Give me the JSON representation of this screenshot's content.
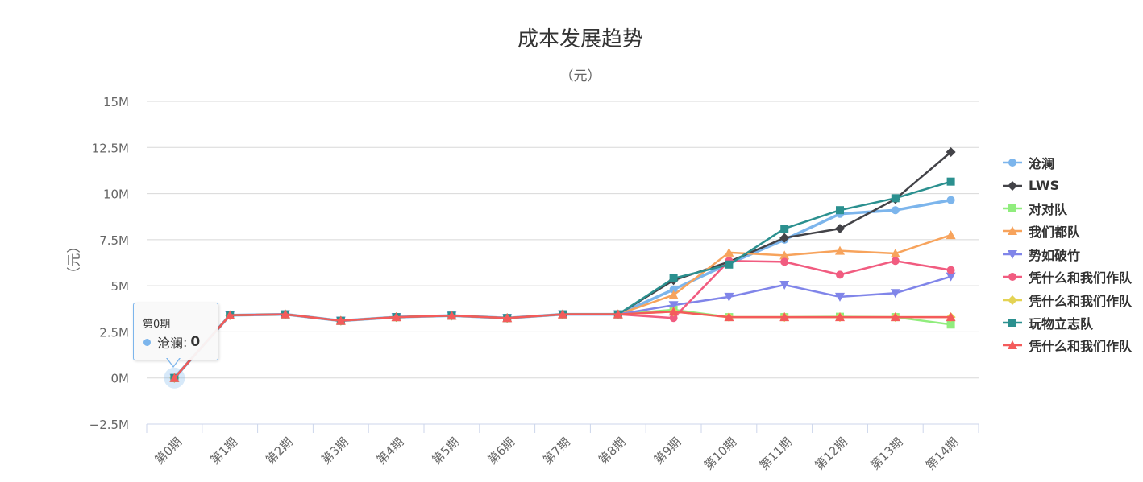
{
  "chart_data": {
    "type": "line",
    "title": "成本发展趋势",
    "subtitle": "（元）",
    "ylabel": "（元）",
    "xlabel": "",
    "ylim": [
      -2500000,
      15000000
    ],
    "y_ticks": [
      -2500000,
      0,
      2500000,
      5000000,
      7500000,
      10000000,
      12500000,
      15000000
    ],
    "y_tick_labels": [
      "−2.5M",
      "0M",
      "2.5M",
      "5M",
      "7.5M",
      "10M",
      "12.5M",
      "15M"
    ],
    "categories": [
      "第0期",
      "第1期",
      "第2期",
      "第3期",
      "第4期",
      "第5期",
      "第6期",
      "第7期",
      "第8期",
      "第9期",
      "第10期",
      "第11期",
      "第12期",
      "第13期",
      "第14期"
    ],
    "grid": true,
    "legend_position": "right",
    "series": [
      {
        "name": "沧澜",
        "color": "#7cb5ec",
        "marker": "circle",
        "values": [
          0,
          3400000,
          3450000,
          3100000,
          3300000,
          3380000,
          3250000,
          3450000,
          3450000,
          4800000,
          6200000,
          7500000,
          8900000,
          9100000,
          9650000
        ]
      },
      {
        "name": "LWS",
        "color": "#434348",
        "marker": "diamond",
        "values": [
          0,
          3400000,
          3450000,
          3100000,
          3300000,
          3380000,
          3250000,
          3450000,
          3450000,
          5300000,
          6300000,
          7600000,
          8100000,
          9700000,
          12250000
        ]
      },
      {
        "name": "对对队",
        "color": "#90ed7d",
        "marker": "square",
        "values": [
          0,
          3400000,
          3450000,
          3100000,
          3300000,
          3380000,
          3250000,
          3450000,
          3450000,
          3700000,
          3300000,
          3300000,
          3320000,
          3300000,
          2900000
        ]
      },
      {
        "name": "我们都队",
        "color": "#f7a35c",
        "marker": "triangle",
        "values": [
          0,
          3400000,
          3450000,
          3100000,
          3300000,
          3380000,
          3250000,
          3450000,
          3450000,
          4500000,
          6800000,
          6650000,
          6900000,
          6750000,
          7750000
        ]
      },
      {
        "name": "势如破竹",
        "color": "#8085e9",
        "marker": "triangle-down",
        "values": [
          0,
          3400000,
          3450000,
          3100000,
          3300000,
          3380000,
          3250000,
          3450000,
          3450000,
          3950000,
          4400000,
          5050000,
          4400000,
          4600000,
          5500000
        ]
      },
      {
        "name": "凭什么和我们作队",
        "color": "#f15c80",
        "marker": "circle",
        "values": [
          0,
          3400000,
          3450000,
          3100000,
          3300000,
          3380000,
          3250000,
          3450000,
          3450000,
          3250000,
          6350000,
          6300000,
          5600000,
          6350000,
          5850000
        ]
      },
      {
        "name": "凭什么和我们作队",
        "color": "#e4d354",
        "marker": "diamond",
        "values": [
          0,
          3400000,
          3450000,
          3100000,
          3300000,
          3380000,
          3250000,
          3450000,
          3450000,
          3600000,
          3300000,
          3300000,
          3300000,
          3300000,
          3300000
        ]
      },
      {
        "name": "玩物立志队",
        "color": "#2b908f",
        "marker": "square",
        "values": [
          0,
          3400000,
          3450000,
          3100000,
          3300000,
          3380000,
          3250000,
          3450000,
          3450000,
          5400000,
          6150000,
          8100000,
          9100000,
          9750000,
          10650000
        ]
      },
      {
        "name": "凭什么和我们作队",
        "color": "#f45b5b",
        "marker": "triangle",
        "values": [
          0,
          3400000,
          3450000,
          3100000,
          3300000,
          3380000,
          3250000,
          3450000,
          3450000,
          3600000,
          3300000,
          3300000,
          3300000,
          3300000,
          3300000
        ]
      }
    ],
    "tooltip": {
      "header": "第0期",
      "series": "沧澜",
      "separator": ": ",
      "value": "0"
    }
  }
}
